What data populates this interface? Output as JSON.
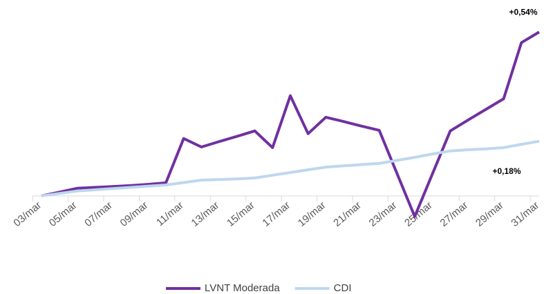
{
  "chart_data": {
    "type": "line",
    "categories": [
      "03/mar",
      null,
      "05/mar",
      null,
      "07/mar",
      null,
      "09/mar",
      null,
      "11/mar",
      null,
      "13/mar",
      null,
      "15/mar",
      null,
      "17/mar",
      null,
      "19/mar",
      null,
      "21/mar",
      null,
      "23/mar",
      null,
      "25/mar",
      null,
      "27/mar",
      null,
      "29/mar",
      null,
      "31/mar"
    ],
    "series": [
      {
        "name": "LVNT Moderada",
        "color": "#7030a0",
        "values": [
          0,
          0.012,
          0.025,
          0.028,
          0.031,
          0.034,
          0.038,
          0.043,
          0.189,
          0.161,
          0.179,
          0.196,
          0.214,
          0.159,
          0.33,
          0.205,
          0.259,
          0.245,
          0.23,
          0.216,
          0.074,
          -0.068,
          0.073,
          0.214,
          0.25,
          0.285,
          0.32,
          0.505,
          0.54
        ],
        "value_labels": [
          null,
          null,
          null,
          null,
          null,
          null,
          null,
          null,
          null,
          null,
          null,
          null,
          null,
          null,
          null,
          null,
          null,
          null,
          null,
          null,
          null,
          null,
          null,
          null,
          null,
          null,
          null,
          null,
          "+0,54%"
        ]
      },
      {
        "name": "CDI",
        "color": "#bdd7ee",
        "values": [
          0,
          0.008,
          0.016,
          0.02,
          0.024,
          0.028,
          0.032,
          0.036,
          0.044,
          0.052,
          0.054,
          0.056,
          0.059,
          0.068,
          0.077,
          0.086,
          0.095,
          0.099,
          0.103,
          0.107,
          0.117,
          0.127,
          0.138,
          0.148,
          0.152,
          0.155,
          0.159,
          0.17,
          0.18
        ],
        "value_labels": [
          null,
          null,
          null,
          null,
          null,
          null,
          null,
          null,
          null,
          null,
          null,
          null,
          null,
          null,
          null,
          null,
          null,
          null,
          null,
          null,
          null,
          null,
          null,
          null,
          null,
          null,
          null,
          null,
          "+0,18%"
        ]
      }
    ],
    "ylim": [
      -0.08,
      0.6
    ],
    "legend": "bottom"
  }
}
